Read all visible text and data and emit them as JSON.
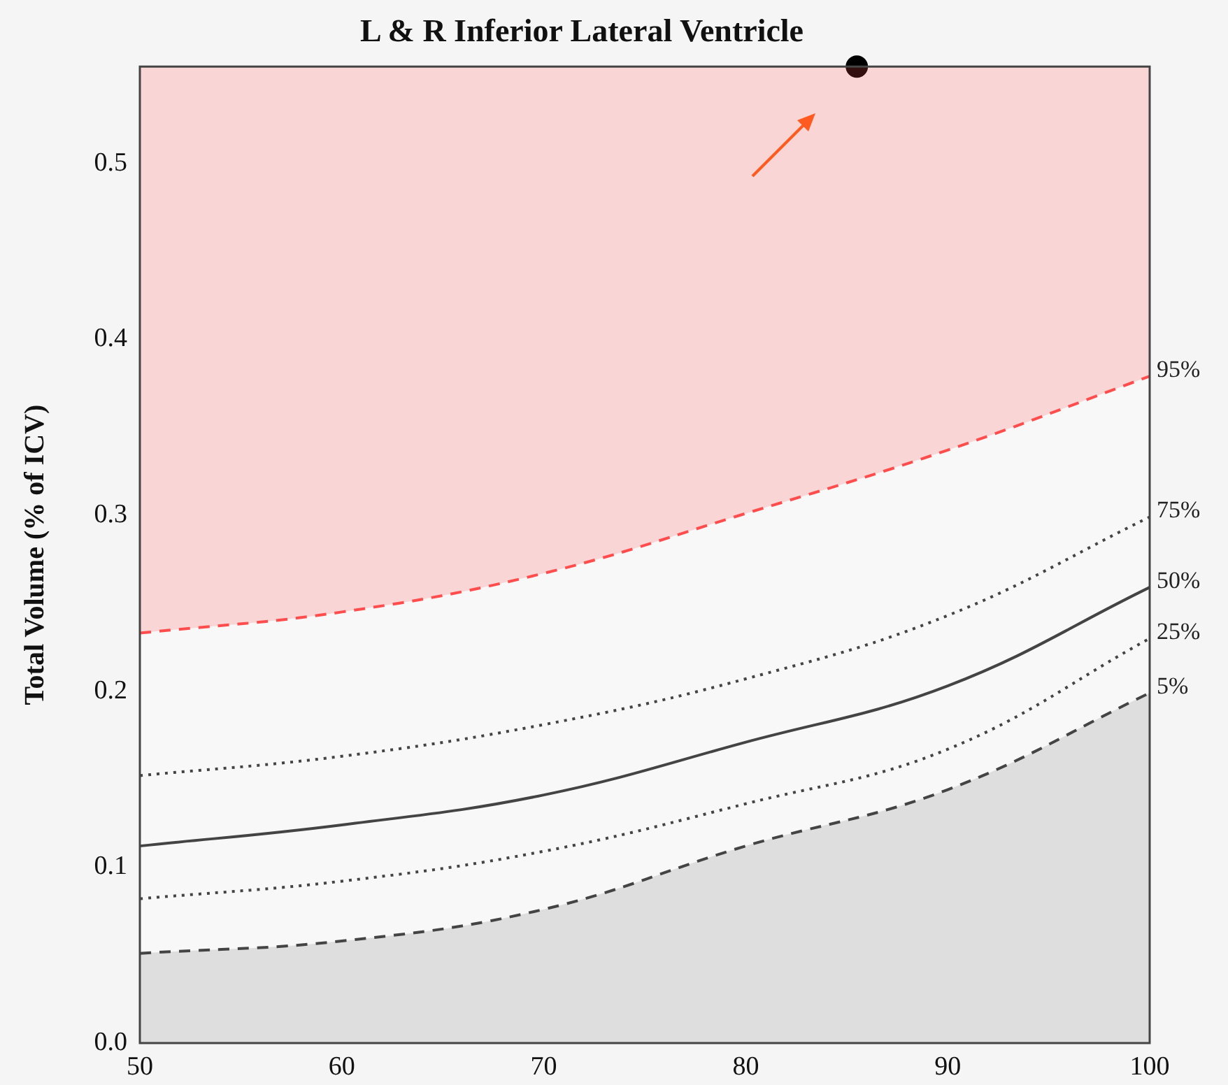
{
  "chart_data": {
    "type": "line",
    "title": "L & R Inferior Lateral Ventricle",
    "ylabel": "Total Volume (% of ICV)",
    "x": [
      50,
      60,
      70,
      80,
      90,
      100
    ],
    "series": [
      {
        "name": "95%",
        "color": "#ff4d4d",
        "line_style": "dashed",
        "values": [
          0.233,
          0.245,
          0.267,
          0.301,
          0.337,
          0.379
        ],
        "lower": [
          0.233,
          0.245,
          0.267,
          0.301,
          0.337,
          0.379
        ],
        "upper": [
          0.555,
          0.555,
          0.555,
          0.555,
          0.555,
          0.555
        ]
      },
      {
        "name": "75%",
        "color": "#444444",
        "line_style": "dotted",
        "values": [
          0.152,
          0.163,
          0.181,
          0.207,
          0.243,
          0.299
        ]
      },
      {
        "name": "50%",
        "color": "#444444",
        "line_style": "solid",
        "values": [
          0.112,
          0.124,
          0.141,
          0.171,
          0.203,
          0.259
        ]
      },
      {
        "name": "25%",
        "color": "#444444",
        "line_style": "dotted",
        "values": [
          0.082,
          0.092,
          0.109,
          0.136,
          0.167,
          0.23
        ]
      },
      {
        "name": "5%",
        "type": "area",
        "color": "#444444",
        "line_style": "dashed",
        "values": [
          0.051,
          0.058,
          0.076,
          0.112,
          0.144,
          0.199
        ]
      },
      {
        "type": "scatter",
        "color": "#000000",
        "marker": "circle",
        "x": [
          85.5
        ],
        "values": [
          0.555
        ]
      }
    ],
    "xlim": [
      50,
      100
    ],
    "xticks": [
      50,
      60,
      70,
      80,
      90,
      100
    ],
    "ylim": [
      0,
      0.555
    ],
    "yticks": [
      {
        "value": 0,
        "label": "0.0"
      },
      0.1,
      0.2,
      0.3,
      0.4,
      0.5
    ],
    "marker": "none",
    "grid": false,
    "legend": false
  }
}
